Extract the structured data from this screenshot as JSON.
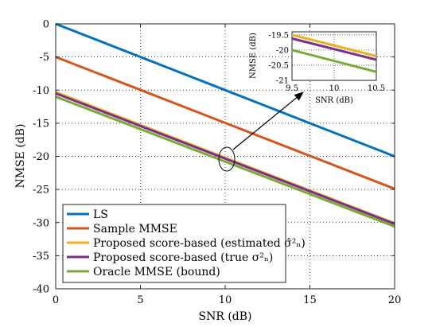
{
  "chart_data": {
    "type": "line",
    "title": "",
    "xlabel": "SNR (dB)",
    "ylabel": "NMSE (dB)",
    "xlim": [
      0,
      20
    ],
    "ylim": [
      -40,
      0
    ],
    "xticks": [
      0,
      5,
      10,
      15,
      20
    ],
    "yticks": [
      0,
      -5,
      -10,
      -15,
      -20,
      -25,
      -30,
      -35,
      -40
    ],
    "grid": "dotted",
    "legend_position": "bottom-left",
    "x": [
      0,
      20
    ],
    "series": [
      {
        "name": "LS",
        "color": "#0072BD",
        "values": [
          0,
          -20
        ]
      },
      {
        "name": "Sample MMSE",
        "color": "#D95319",
        "values": [
          -5,
          -24.9
        ]
      },
      {
        "name": "Proposed score-based (estimated σ̂²ₙ)",
        "color": "#EDB120",
        "values": [
          -10.3,
          -30.1
        ]
      },
      {
        "name": "Proposed score-based (true σ²ₙ)",
        "color": "#7E2F8E",
        "values": [
          -10.5,
          -30.2
        ]
      },
      {
        "name": "Oracle MMSE (bound)",
        "color": "#77AC30",
        "values": [
          -11.0,
          -30.6
        ]
      }
    ],
    "inset": {
      "xlabel": "SNR (dB)",
      "ylabel": "NMSE (dB)",
      "xlim": [
        9.5,
        10.5
      ],
      "ylim": [
        -21,
        -19.4
      ],
      "xticks": [
        9.5,
        10,
        10.5
      ],
      "yticks": [
        -19.5,
        -20,
        -20.5,
        -21
      ],
      "series": [
        {
          "color": "#EDB120",
          "x": [
            9.5,
            10.5
          ],
          "values": [
            -19.5,
            -20.2
          ]
        },
        {
          "color": "#7E2F8E",
          "x": [
            9.5,
            10.5
          ],
          "values": [
            -19.62,
            -20.32
          ]
        },
        {
          "color": "#77AC30",
          "x": [
            9.5,
            10.5
          ],
          "values": [
            -20.0,
            -20.72
          ]
        }
      ]
    }
  }
}
